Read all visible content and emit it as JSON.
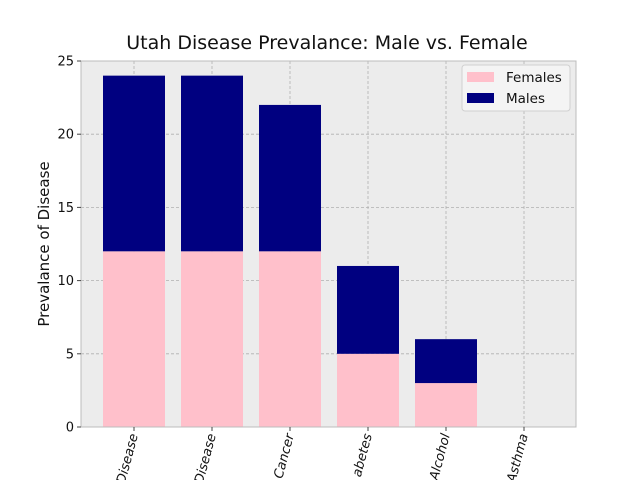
{
  "chart_data": {
    "type": "bar",
    "stacked": true,
    "title": "Utah Disease Prevalance: Male vs. Female",
    "xlabel": "",
    "ylabel": "Prevalance of Disease",
    "categories": [
      "Disease",
      "Disease",
      "Cancer",
      "Diabetes",
      "Alcohol",
      "Asthma"
    ],
    "categories_visible_text": [
      "Disease",
      "Disease",
      "Cancer",
      "abetes",
      "Alcohol",
      "Asthma"
    ],
    "series": [
      {
        "name": "Females",
        "values": [
          12,
          12,
          12,
          5,
          3,
          0
        ],
        "color": "#ffc0cb"
      },
      {
        "name": "Males",
        "values": [
          12,
          12,
          10,
          6,
          3,
          0
        ],
        "color": "#000080"
      }
    ],
    "ylim": [
      0,
      25
    ],
    "yticks": [
      0,
      5,
      10,
      15,
      20,
      25
    ],
    "grid": true,
    "legend_position": "top-right",
    "background_color": "#ececec"
  }
}
